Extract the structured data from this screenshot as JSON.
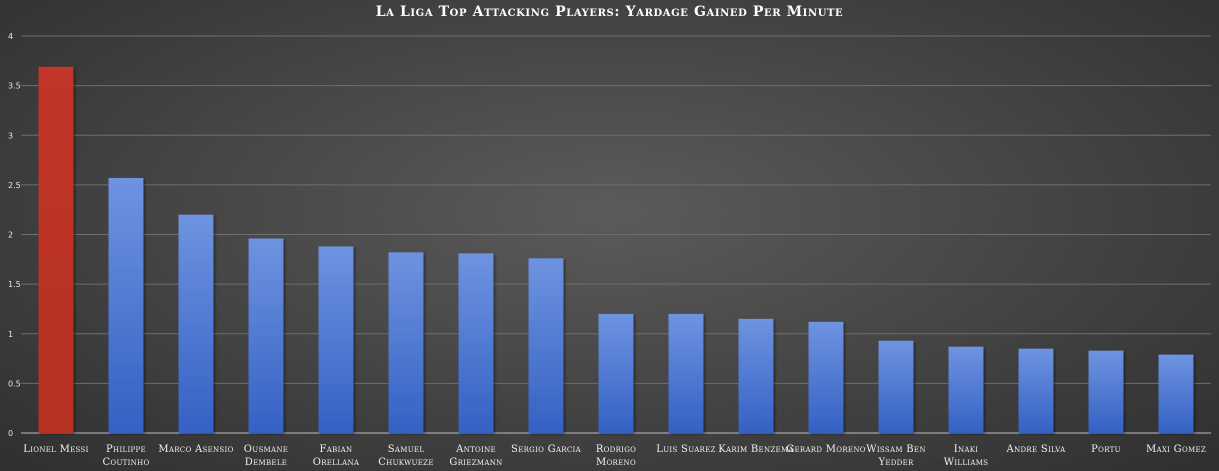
{
  "chart_data": {
    "type": "bar",
    "title": "La Liga Top Attacking Players: Yardage Gained Per Minute",
    "xlabel": "",
    "ylabel": "",
    "ylim": [
      0,
      4
    ],
    "yticks": [
      0,
      0.5,
      1,
      1.5,
      2,
      2.5,
      3,
      3.5,
      4
    ],
    "ytick_labels": [
      "0",
      "0.5",
      "1",
      "1.5",
      "2",
      "2.5",
      "3",
      "3.5",
      "4"
    ],
    "grid": true,
    "legend": "none",
    "categories": [
      "Lionel Messi",
      "Philippe Coutinho",
      "Marco Asensio",
      "Ousmane Dembele",
      "Fabian Orellana",
      "Samuel Chukwueze",
      "Antoine Griezmann",
      "Sergio Garcia",
      "Rodrigo Moreno",
      "Luis Suarez",
      "Karim Benzema",
      "Gerard Moreno",
      "Wissam Ben Yedder",
      "Inaki Williams",
      "Andre Silva",
      "Portu",
      "Maxi Gomez"
    ],
    "values": [
      3.69,
      2.57,
      2.2,
      1.96,
      1.88,
      1.82,
      1.81,
      1.76,
      1.2,
      1.2,
      1.15,
      1.12,
      0.93,
      0.87,
      0.85,
      0.83,
      0.79
    ],
    "highlight_index": 0,
    "colors": {
      "highlight": "#c1362a",
      "bar_top": "#6e93e0",
      "bar_bottom": "#3461c4"
    }
  }
}
